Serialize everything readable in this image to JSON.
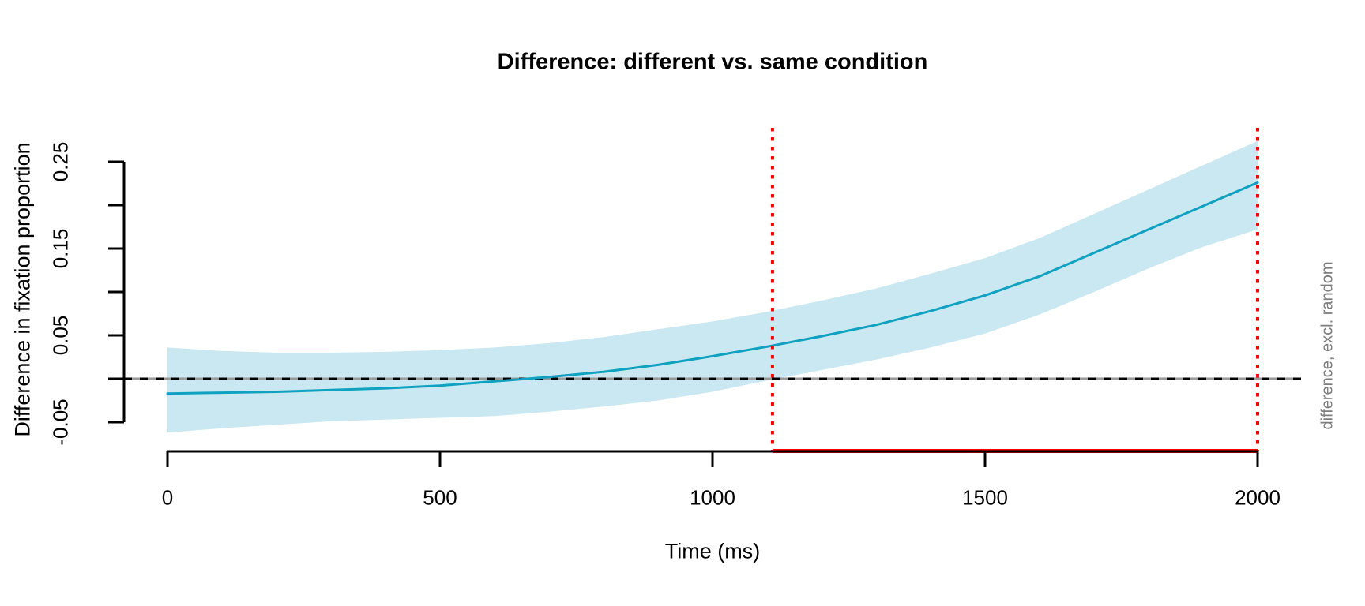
{
  "title": "Difference: different vs. same condition",
  "axes": {
    "x_label": "Time (ms)",
    "y_label": "Difference in fixation proportion",
    "right_label": "difference, excl. random",
    "x_tick_labels": [
      "0",
      "500",
      "1000",
      "1500",
      "2000"
    ],
    "y_tick_labels": [
      "-0.05",
      "0.05",
      "0.15",
      "0.25"
    ]
  },
  "colors": {
    "curve": "#10A0C0",
    "band": "#C9E8F1",
    "significance": "#FF0000",
    "zero_line_gray": "#999999",
    "zero_line_black": "#000000",
    "axis": "#000000",
    "side_note": "#7D7D7D"
  },
  "chart_data": {
    "type": "line",
    "title": "Difference: different vs. same condition",
    "xlabel": "Time (ms)",
    "ylabel": "Difference in fixation proportion",
    "right_annotation": "difference, excl. random",
    "grid": false,
    "legend_position": "none",
    "xlim": [
      0,
      2000
    ],
    "ylim": [
      -0.084,
      0.289
    ],
    "x_ticks": [
      0,
      500,
      1000,
      1500,
      2000
    ],
    "y_ticks_labeled": [
      -0.05,
      0.05,
      0.15,
      0.25
    ],
    "y_ticks_minor": [
      0,
      0.1,
      0.2
    ],
    "zero_reference_line": 0,
    "significant_window_ms": [
      1110,
      2000
    ],
    "x": [
      0,
      100,
      200,
      300,
      400,
      500,
      600,
      700,
      800,
      900,
      1000,
      1100,
      1200,
      1300,
      1400,
      1500,
      1600,
      1700,
      1800,
      1900,
      2000
    ],
    "series": [
      {
        "name": "estimated difference",
        "values": [
          -0.017,
          -0.016,
          -0.015,
          -0.013,
          -0.011,
          -0.008,
          -0.003,
          0.002,
          0.008,
          0.016,
          0.026,
          0.037,
          0.049,
          0.062,
          0.078,
          0.096,
          0.118,
          0.145,
          0.172,
          0.199,
          0.226
        ]
      },
      {
        "name": "ci_upper",
        "values": [
          0.036,
          0.032,
          0.03,
          0.03,
          0.031,
          0.033,
          0.036,
          0.041,
          0.048,
          0.057,
          0.066,
          0.077,
          0.09,
          0.104,
          0.121,
          0.139,
          0.162,
          0.19,
          0.218,
          0.246,
          0.274
        ]
      },
      {
        "name": "ci_lower",
        "values": [
          -0.062,
          -0.057,
          -0.053,
          -0.049,
          -0.047,
          -0.045,
          -0.043,
          -0.038,
          -0.032,
          -0.025,
          -0.015,
          -0.002,
          0.01,
          0.022,
          0.036,
          0.052,
          0.074,
          0.1,
          0.127,
          0.152,
          0.172
        ]
      }
    ]
  }
}
